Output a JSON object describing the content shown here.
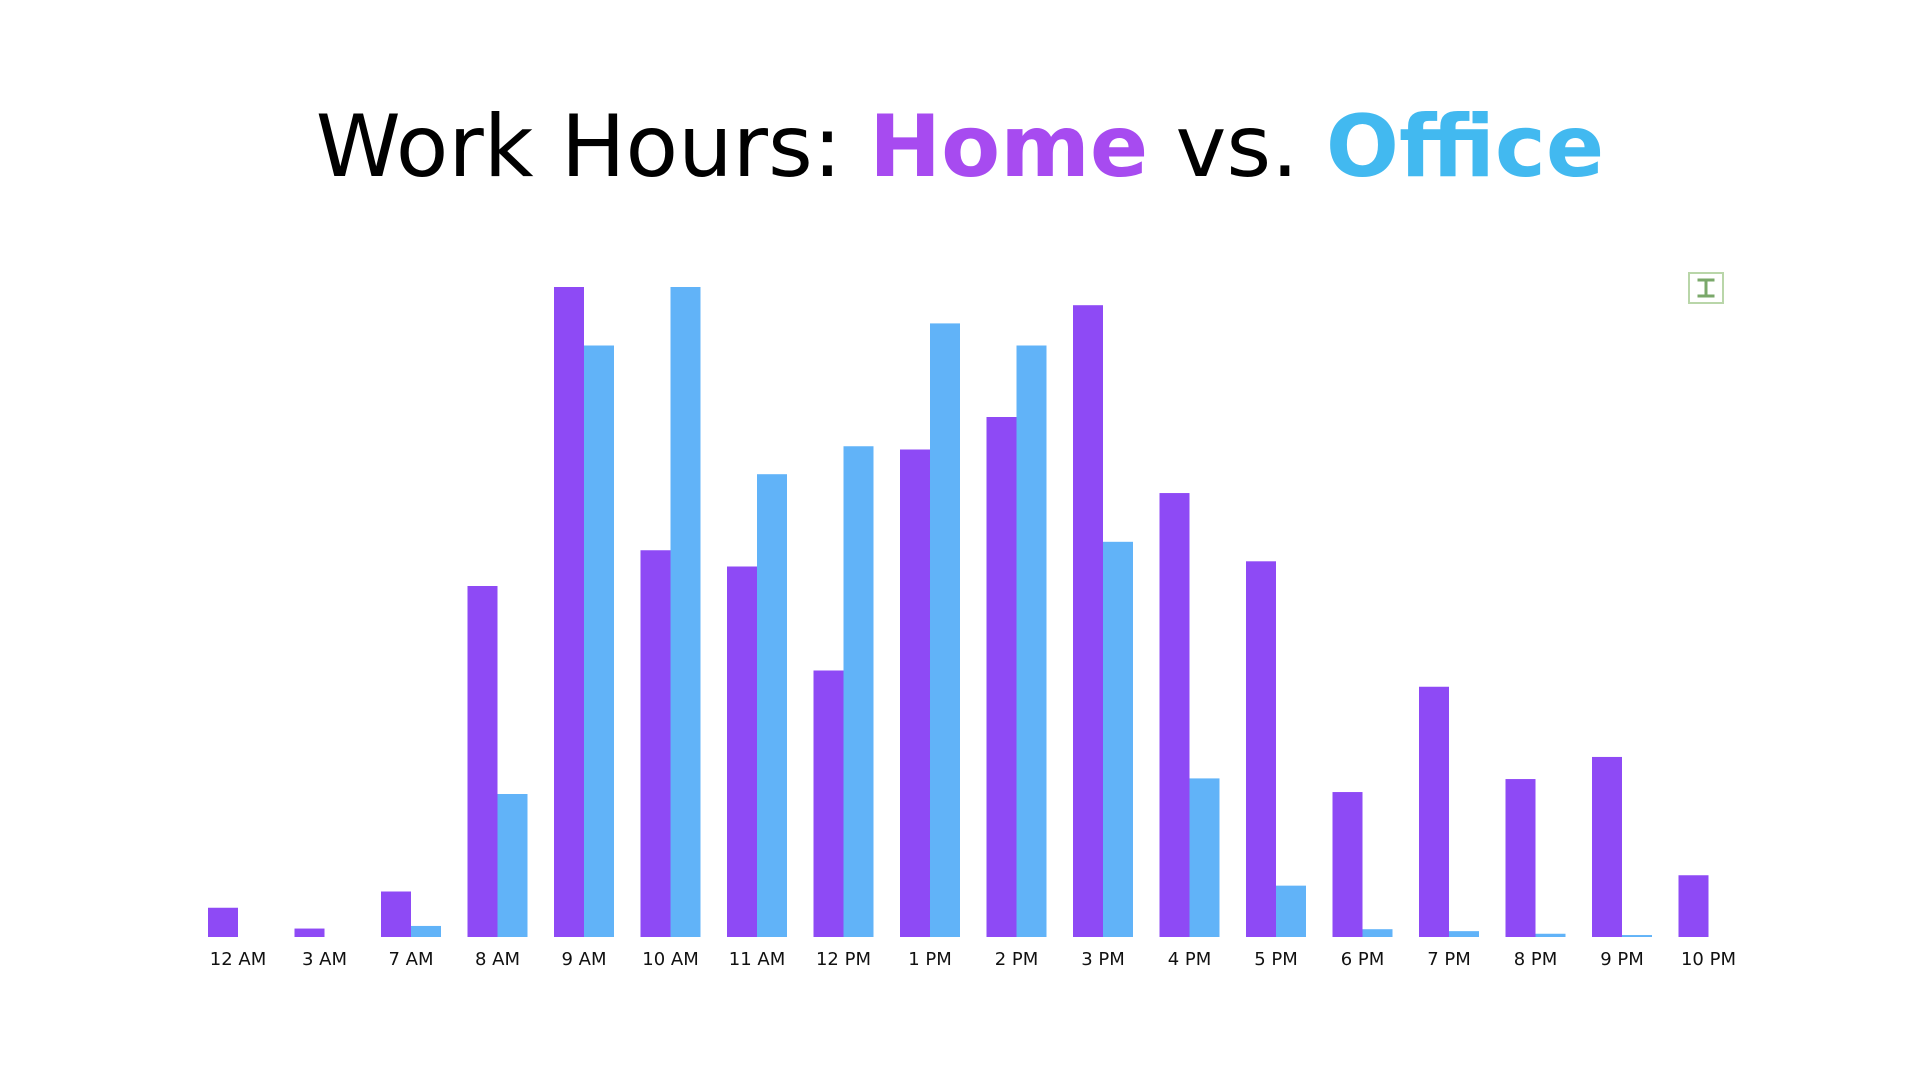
{
  "title": {
    "prefix": "Work Hours: ",
    "home": "Home",
    "middle": " vs. ",
    "office": "Office"
  },
  "colors": {
    "home": "#8e4af5",
    "office": "#61b3f8",
    "title_home": "#a74bf0",
    "title_office": "#42b9f0",
    "icon": "#7aa86a"
  },
  "corner_icon": "text-cursor-icon",
  "chart_data": {
    "type": "bar",
    "categories": [
      "12 AM",
      "3 AM",
      "7 AM",
      "8 AM",
      "9 AM",
      "10 AM",
      "11 AM",
      "12 PM",
      "1 PM",
      "2 PM",
      "3 PM",
      "4 PM",
      "5 PM",
      "6 PM",
      "7 PM",
      "8 PM",
      "9 PM",
      "10 PM"
    ],
    "series": [
      {
        "name": "Home",
        "values": [
          4.5,
          1.3,
          7,
          54,
          100,
          59.5,
          57,
          41,
          75,
          80,
          97.2,
          68.3,
          57.8,
          22.3,
          38.5,
          24.3,
          27.7,
          9.5
        ]
      },
      {
        "name": "Office",
        "values": [
          0,
          0,
          1.7,
          22,
          91,
          100,
          71.2,
          75.5,
          94.4,
          91,
          60.8,
          24.4,
          7.9,
          1.2,
          0.9,
          0.5,
          0.3,
          0
        ]
      }
    ],
    "ylim": [
      0,
      100
    ],
    "grid": false,
    "legend": "none"
  }
}
